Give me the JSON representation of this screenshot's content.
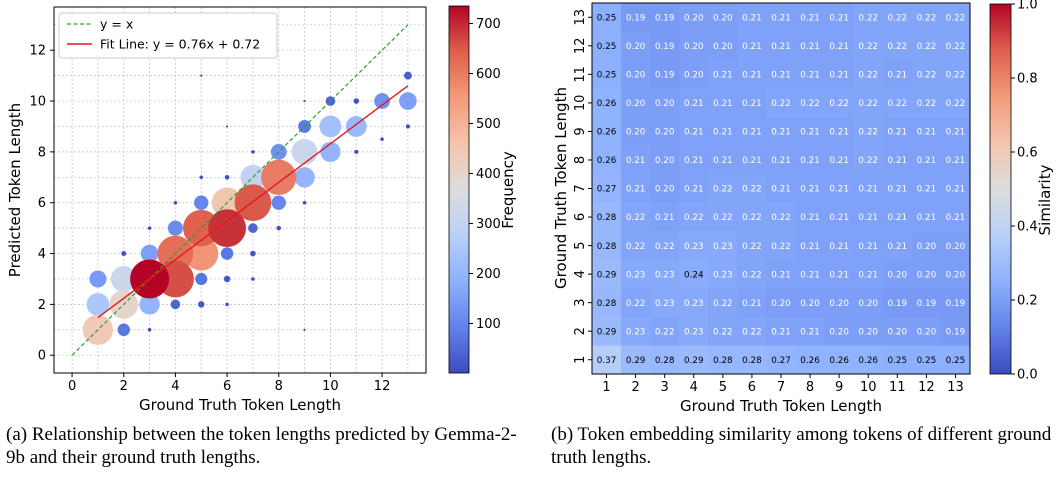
{
  "captions": {
    "a": "(a) Relationship between the token lengths predicted by Gemma-2-9b and their ground truth lengths.",
    "b": "(b) Token embedding similarity among tokens of different ground truth lengths."
  },
  "colors": {
    "identity_line": "#2ca02c",
    "fit_line": "#e31a1c",
    "grid": "#bfbfbf",
    "colormap": "coolwarm"
  },
  "chart_data": [
    {
      "type": "scatter",
      "xlabel": "Ground Truth Token Length",
      "ylabel": "Predicted Token Length",
      "xlim": [
        -0.7,
        13.7
      ],
      "ylim": [
        -0.7,
        13.7
      ],
      "xticks": [
        0,
        2,
        4,
        6,
        8,
        10,
        12
      ],
      "yticks": [
        0,
        2,
        4,
        6,
        8,
        10,
        12
      ],
      "grid": true,
      "legend_position": "top-left",
      "legend": [
        "y = x",
        "Fit Line: y = 0.76x + 0.72"
      ],
      "lines": [
        {
          "name": "y = x",
          "style": "dashed",
          "color": "#2ca02c",
          "x": [
            0,
            13
          ],
          "y": [
            0,
            13
          ]
        },
        {
          "name": "Fit Line: y = 0.76x + 0.72",
          "style": "solid",
          "color": "#e31a1c",
          "slope": 0.76,
          "intercept": 0.72,
          "x": [
            1,
            13
          ]
        }
      ],
      "colorbar": {
        "label": "Frequency",
        "range": [
          1,
          735
        ],
        "ticks": [
          100,
          200,
          300,
          400,
          500,
          600,
          700
        ]
      },
      "points": [
        {
          "x": 1,
          "y": 1,
          "freq": 440
        },
        {
          "x": 1,
          "y": 2,
          "freq": 250
        },
        {
          "x": 1,
          "y": 3,
          "freq": 140
        },
        {
          "x": 2,
          "y": 1,
          "freq": 75
        },
        {
          "x": 2,
          "y": 2,
          "freq": 400
        },
        {
          "x": 2,
          "y": 3,
          "freq": 320
        },
        {
          "x": 2,
          "y": 4,
          "freq": 12
        },
        {
          "x": 3,
          "y": 1,
          "freq": 6
        },
        {
          "x": 3,
          "y": 2,
          "freq": 200
        },
        {
          "x": 3,
          "y": 3,
          "freq": 735
        },
        {
          "x": 3,
          "y": 4,
          "freq": 150
        },
        {
          "x": 3,
          "y": 5,
          "freq": 6
        },
        {
          "x": 4,
          "y": 2,
          "freq": 45
        },
        {
          "x": 4,
          "y": 3,
          "freq": 660
        },
        {
          "x": 4,
          "y": 4,
          "freq": 620
        },
        {
          "x": 4,
          "y": 5,
          "freq": 110
        },
        {
          "x": 4,
          "y": 6,
          "freq": 6
        },
        {
          "x": 5,
          "y": 2,
          "freq": 20
        },
        {
          "x": 5,
          "y": 3,
          "freq": 70
        },
        {
          "x": 5,
          "y": 4,
          "freq": 560
        },
        {
          "x": 5,
          "y": 5,
          "freq": 640
        },
        {
          "x": 5,
          "y": 6,
          "freq": 100
        },
        {
          "x": 5,
          "y": 7,
          "freq": 6
        },
        {
          "x": 6,
          "y": 2,
          "freq": 6
        },
        {
          "x": 6,
          "y": 3,
          "freq": 20
        },
        {
          "x": 6,
          "y": 4,
          "freq": 75
        },
        {
          "x": 6,
          "y": 5,
          "freq": 690
        },
        {
          "x": 6,
          "y": 6,
          "freq": 450
        },
        {
          "x": 6,
          "y": 7,
          "freq": 10
        },
        {
          "x": 7,
          "y": 3,
          "freq": 6
        },
        {
          "x": 7,
          "y": 4,
          "freq": 15
        },
        {
          "x": 7,
          "y": 5,
          "freq": 45
        },
        {
          "x": 7,
          "y": 6,
          "freq": 650
        },
        {
          "x": 7,
          "y": 7,
          "freq": 300
        },
        {
          "x": 7,
          "y": 8,
          "freq": 6
        },
        {
          "x": 8,
          "y": 5,
          "freq": 10
        },
        {
          "x": 8,
          "y": 6,
          "freq": 100
        },
        {
          "x": 8,
          "y": 7,
          "freq": 600
        },
        {
          "x": 8,
          "y": 8,
          "freq": 120
        },
        {
          "x": 9,
          "y": 6,
          "freq": 6
        },
        {
          "x": 9,
          "y": 7,
          "freq": 200
        },
        {
          "x": 9,
          "y": 8,
          "freq": 320
        },
        {
          "x": 9,
          "y": 9,
          "freq": 80
        },
        {
          "x": 10,
          "y": 8,
          "freq": 200
        },
        {
          "x": 10,
          "y": 9,
          "freq": 230
        },
        {
          "x": 10,
          "y": 10,
          "freq": 45
        },
        {
          "x": 11,
          "y": 8,
          "freq": 8
        },
        {
          "x": 11,
          "y": 9,
          "freq": 210
        },
        {
          "x": 11,
          "y": 10,
          "freq": 15
        },
        {
          "x": 12,
          "y": 8.5,
          "freq": 6
        },
        {
          "x": 12,
          "y": 10,
          "freq": 120
        },
        {
          "x": 13,
          "y": 9,
          "freq": 8
        },
        {
          "x": 13,
          "y": 10,
          "freq": 150
        },
        {
          "x": 13,
          "y": 11,
          "freq": 30
        },
        {
          "x": 9,
          "y": 1,
          "freq": 2
        },
        {
          "x": 9,
          "y": 10,
          "freq": 2
        },
        {
          "x": 5,
          "y": 11,
          "freq": 2
        },
        {
          "x": 6,
          "y": 9,
          "freq": 2
        }
      ]
    },
    {
      "type": "heatmap",
      "xlabel": "Ground Truth Token Length",
      "ylabel": "Ground Truth Token Length",
      "x": [
        1,
        2,
        3,
        4,
        5,
        6,
        7,
        8,
        9,
        10,
        11,
        12,
        13
      ],
      "y": [
        1,
        2,
        3,
        4,
        5,
        6,
        7,
        8,
        9,
        10,
        11,
        12,
        13
      ],
      "colorbar": {
        "label": "Similarity",
        "range": [
          0.0,
          1.0
        ],
        "ticks": [
          "0.0",
          "0.2",
          "0.4",
          "0.6",
          "0.8",
          "1.0"
        ]
      },
      "rows": [
        {
          "y": 13,
          "values": [
            "0.25",
            "0.19",
            "0.19",
            "0.20",
            "0.20",
            "0.21",
            "0.21",
            "0.21",
            "0.21",
            "0.22",
            "0.22",
            "0.22",
            "0.22"
          ]
        },
        {
          "y": 12,
          "values": [
            "0.25",
            "0.20",
            "0.19",
            "0.20",
            "0.20",
            "0.21",
            "0.21",
            "0.21",
            "0.21",
            "0.22",
            "0.22",
            "0.22",
            "0.22"
          ]
        },
        {
          "y": 11,
          "values": [
            "0.25",
            "0.20",
            "0.19",
            "0.20",
            "0.21",
            "0.21",
            "0.21",
            "0.21",
            "0.21",
            "0.22",
            "0.21",
            "0.22",
            "0.22"
          ]
        },
        {
          "y": 10,
          "values": [
            "0.26",
            "0.20",
            "0.20",
            "0.21",
            "0.21",
            "0.21",
            "0.22",
            "0.22",
            "0.22",
            "0.22",
            "0.22",
            "0.22",
            "0.22"
          ]
        },
        {
          "y": 9,
          "values": [
            "0.26",
            "0.20",
            "0.20",
            "0.21",
            "0.21",
            "0.21",
            "0.21",
            "0.21",
            "0.21",
            "0.22",
            "0.21",
            "0.21",
            "0.21"
          ]
        },
        {
          "y": 8,
          "values": [
            "0.26",
            "0.21",
            "0.20",
            "0.21",
            "0.21",
            "0.21",
            "0.21",
            "0.21",
            "0.21",
            "0.22",
            "0.21",
            "0.21",
            "0.21"
          ]
        },
        {
          "y": 7,
          "values": [
            "0.27",
            "0.21",
            "0.20",
            "0.21",
            "0.22",
            "0.22",
            "0.21",
            "0.21",
            "0.21",
            "0.21",
            "0.21",
            "0.21",
            "0.21"
          ]
        },
        {
          "y": 6,
          "values": [
            "0.28",
            "0.22",
            "0.21",
            "0.22",
            "0.22",
            "0.22",
            "0.22",
            "0.21",
            "0.21",
            "0.21",
            "0.21",
            "0.21",
            "0.21"
          ]
        },
        {
          "y": 5,
          "values": [
            "0.28",
            "0.22",
            "0.22",
            "0.23",
            "0.23",
            "0.22",
            "0.22",
            "0.21",
            "0.21",
            "0.21",
            "0.21",
            "0.20",
            "0.20"
          ]
        },
        {
          "y": 4,
          "values": [
            "0.29",
            "0.23",
            "0.23",
            "0.24",
            "0.23",
            "0.22",
            "0.21",
            "0.21",
            "0.21",
            "0.21",
            "0.20",
            "0.20",
            "0.20"
          ]
        },
        {
          "y": 3,
          "values": [
            "0.28",
            "0.22",
            "0.23",
            "0.23",
            "0.22",
            "0.21",
            "0.20",
            "0.20",
            "0.20",
            "0.20",
            "0.19",
            "0.19",
            "0.19"
          ]
        },
        {
          "y": 2,
          "values": [
            "0.29",
            "0.23",
            "0.22",
            "0.23",
            "0.22",
            "0.22",
            "0.21",
            "0.21",
            "0.20",
            "0.20",
            "0.20",
            "0.20",
            "0.19"
          ]
        },
        {
          "y": 1,
          "values": [
            "0.37",
            "0.29",
            "0.28",
            "0.29",
            "0.28",
            "0.28",
            "0.27",
            "0.26",
            "0.26",
            "0.26",
            "0.25",
            "0.25",
            "0.25"
          ]
        }
      ]
    }
  ]
}
